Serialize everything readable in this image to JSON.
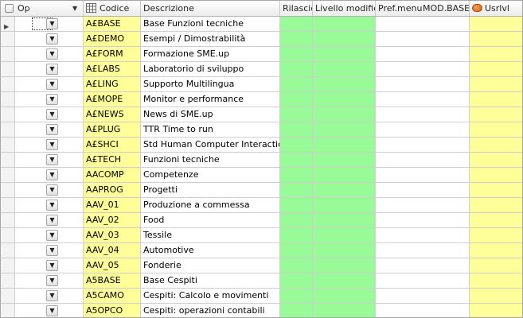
{
  "header": {
    "op_label": "Op",
    "codice_label": "Codice",
    "descrizione_label": "Descrizione",
    "rilascio_label": "Rilascio",
    "livello_label": "Livello modifica",
    "prefmenu_label": "Pref.menu",
    "modbase_label": "MOD.BASE",
    "usrlvl_label": "Usrlvl"
  },
  "icons": {
    "header_checkbox": "checkbox-icon",
    "op_filter": "chevron-down-icon",
    "codice_type": "grid-icon",
    "usrlvl_type": "user-icon",
    "row_dropdown": "chevron-down-icon",
    "row_pointer": "row-indicator-icon"
  },
  "colors": {
    "yellow": "#ffff99",
    "green": "#98fb98",
    "header": "#ececec"
  },
  "rows": [
    {
      "codice": "A£BASE",
      "descrizione": "Base Funzioni tecniche"
    },
    {
      "codice": "A£DEMO",
      "descrizione": "Esempi / Dimostrabilità"
    },
    {
      "codice": "A£FORM",
      "descrizione": "Formazione SME.up"
    },
    {
      "codice": "A£LABS",
      "descrizione": "Laboratorio di sviluppo"
    },
    {
      "codice": "A£LING",
      "descrizione": "Supporto Multilingua"
    },
    {
      "codice": "A£MOPE",
      "descrizione": "Monitor e performance"
    },
    {
      "codice": "A£NEWS",
      "descrizione": "News di SME.up"
    },
    {
      "codice": "A£PLUG",
      "descrizione": "TTR Time to run"
    },
    {
      "codice": "A£SHCI",
      "descrizione": "Std Human Computer Interaction"
    },
    {
      "codice": "A£TECH",
      "descrizione": "Funzioni tecniche"
    },
    {
      "codice": "AACOMP",
      "descrizione": "Competenze"
    },
    {
      "codice": "AAPROG",
      "descrizione": "Progetti"
    },
    {
      "codice": "AAV_01",
      "descrizione": "Produzione a commessa"
    },
    {
      "codice": "AAV_02",
      "descrizione": "Food"
    },
    {
      "codice": "AAV_03",
      "descrizione": "Tessile"
    },
    {
      "codice": "AAV_04",
      "descrizione": "Automotive"
    },
    {
      "codice": "AAV_05",
      "descrizione": "Fonderie"
    },
    {
      "codice": "A5BASE",
      "descrizione": "Base Cespiti"
    },
    {
      "codice": "A5CAMO",
      "descrizione": "Cespiti: Calcolo e movimenti"
    },
    {
      "codice": "A5OPCO",
      "descrizione": "Cespiti: operazioni contabili"
    }
  ]
}
